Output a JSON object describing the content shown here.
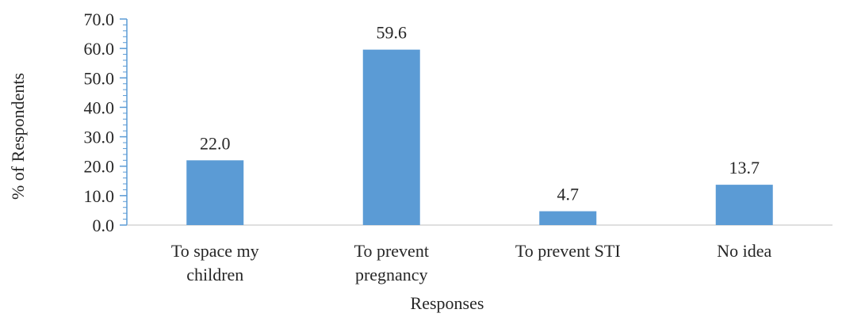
{
  "chart_data": {
    "type": "bar",
    "categories": [
      [
        "To space my",
        "children"
      ],
      [
        "To prevent",
        "pregnancy"
      ],
      [
        "To prevent STI"
      ],
      [
        "No idea"
      ]
    ],
    "values": [
      22.0,
      59.6,
      4.7,
      13.7
    ],
    "data_labels": [
      "22.0",
      "59.6",
      "4.7",
      "13.7"
    ],
    "xlabel": "Responses",
    "ylabel": "% of Respondents",
    "ylim": [
      0,
      70
    ],
    "yticks": [
      "0.0",
      "10.0",
      "20.0",
      "30.0",
      "40.0",
      "50.0",
      "60.0",
      "70.0"
    ],
    "grid": false,
    "legend": "none",
    "bar_color": "#5B9BD5",
    "axis_color": "#5B9BD5"
  }
}
